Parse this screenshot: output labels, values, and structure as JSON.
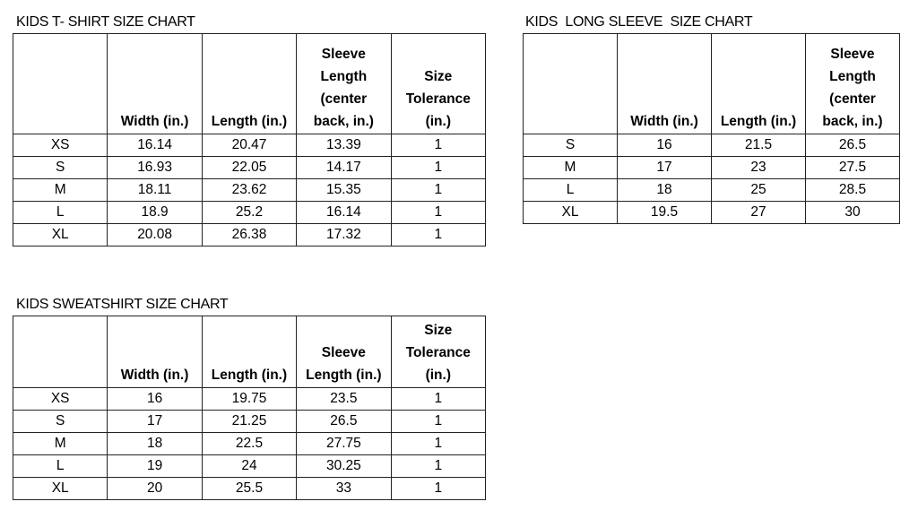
{
  "tables": [
    {
      "title": "KIDS T- SHIRT SIZE CHART",
      "headers": [
        "",
        "Width (in.)",
        "Length (in.)",
        "Sleeve\nLength\n(center\nback, in.)",
        "Size\nTolerance\n(in.)"
      ],
      "rows": [
        [
          "XS",
          "16.14",
          "20.47",
          "13.39",
          "1"
        ],
        [
          "S",
          "16.93",
          "22.05",
          "14.17",
          "1"
        ],
        [
          "M",
          "18.11",
          "23.62",
          "15.35",
          "1"
        ],
        [
          "L",
          "18.9",
          "25.2",
          "16.14",
          "1"
        ],
        [
          "XL",
          "20.08",
          "26.38",
          "17.32",
          "1"
        ]
      ]
    },
    {
      "title": "KIDS  LONG SLEEVE  SIZE CHART",
      "headers": [
        "",
        "Width (in.)",
        "Length (in.)",
        "Sleeve\nLength\n(center\nback, in.)"
      ],
      "rows": [
        [
          "S",
          "16",
          "21.5",
          "26.5"
        ],
        [
          "M",
          "17",
          "23",
          "27.5"
        ],
        [
          "L",
          "18",
          "25",
          "28.5"
        ],
        [
          "XL",
          "19.5",
          "27",
          "30"
        ]
      ]
    },
    {
      "title": "KIDS SWEATSHIRT SIZE CHART",
      "headers": [
        "",
        "Width (in.)",
        "Length (in.)",
        "Sleeve\nLength (in.)",
        "Size\nTolerance\n(in.)"
      ],
      "rows": [
        [
          "XS",
          "16",
          "19.75",
          "23.5",
          "1"
        ],
        [
          "S",
          "17",
          "21.25",
          "26.5",
          "1"
        ],
        [
          "M",
          "18",
          "22.5",
          "27.75",
          "1"
        ],
        [
          "L",
          "19",
          "24",
          "30.25",
          "1"
        ],
        [
          "XL",
          "20",
          "25.5",
          "33",
          "1"
        ]
      ]
    }
  ]
}
